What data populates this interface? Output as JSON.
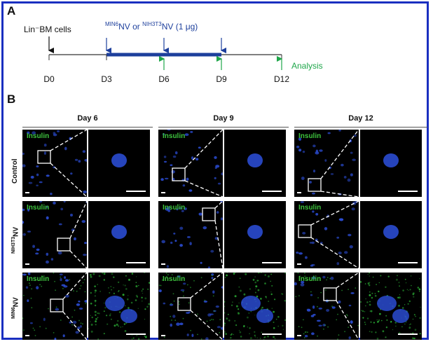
{
  "panelA": {
    "letter": "A",
    "cells_label": "Lin⁻BM cells",
    "treatment_label": "MIN6NV or NIH3T3NV (1 μg)",
    "treatment_parts": {
      "sup1": "MIN6",
      "text1": "NV or ",
      "sup2": "NIH3T3",
      "text2": "NV (1 μg)"
    },
    "analysis_label": "Analysis",
    "days": [
      "D0",
      "D3",
      "D6",
      "D9",
      "D12"
    ],
    "colors": {
      "black": "#111111",
      "blue": "#1d3f9c",
      "green": "#1fa64a"
    }
  },
  "panelB": {
    "letter": "B",
    "columns": [
      "Day 6",
      "Day 9",
      "Day 12"
    ],
    "rows": [
      {
        "main": "Control",
        "sup": "",
        "suffix": ""
      },
      {
        "main": "",
        "sup": "NIH3T3",
        "suffix": "NV"
      },
      {
        "main": "",
        "sup": "MIN6",
        "suffix": "NV"
      }
    ],
    "stain_label": "Insulin",
    "colors": {
      "nucleus": "#2a4bd0",
      "insulin": "#2fbf3a",
      "border": "#1a2fc0"
    }
  }
}
